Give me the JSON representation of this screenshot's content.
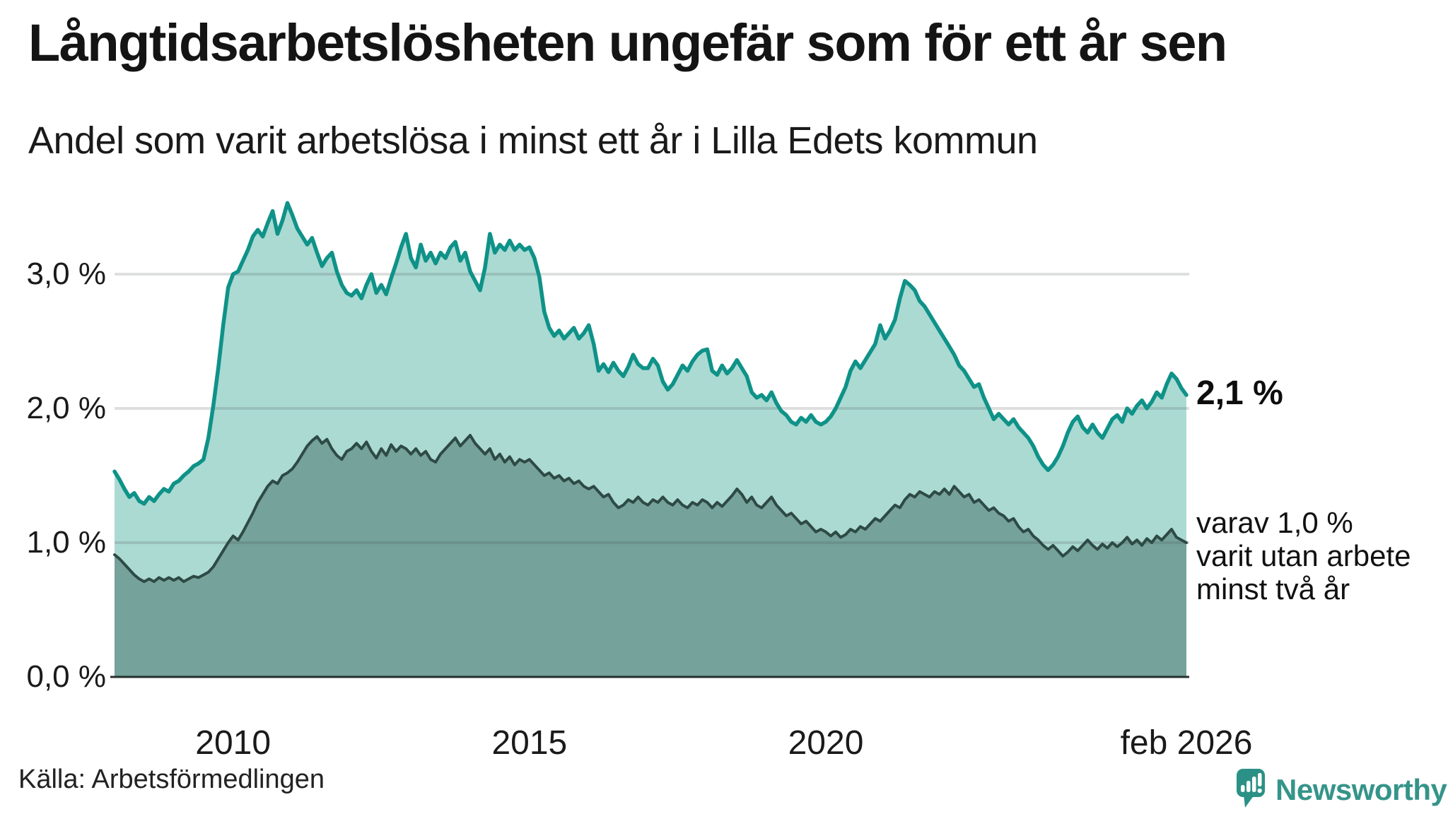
{
  "header": {
    "title": "Långtidsarbetslösheten ungefär som för ett år sen",
    "subtitle": "Andel som varit arbetslösa i minst ett år i Lilla Edets kommun"
  },
  "chart_data": {
    "type": "area",
    "title": "Långtidsarbetslösheten ungefär som för ett år sen",
    "subtitle": "Andel som varit arbetslösa i minst ett år i Lilla Edets kommun",
    "region": "Lilla Edets kommun",
    "frequency": "monthly",
    "x_start": "2008-01",
    "x_end": "2026-02",
    "ylim": [
      0,
      3.6
    ],
    "grid": true,
    "y_ticks": [
      {
        "label": "0,0 %",
        "v": 0
      },
      {
        "label": "1,0 %",
        "v": 1
      },
      {
        "label": "2,0 %",
        "v": 2
      },
      {
        "label": "3,0 %",
        "v": 3
      }
    ],
    "x_ticks": [
      {
        "label": "2010",
        "t": 2010
      },
      {
        "label": "2015",
        "t": 2015
      },
      {
        "label": "2020",
        "t": 2020
      },
      {
        "label": "feb 2026",
        "t": 2026.0833
      }
    ],
    "colors": {
      "accent_line": "#0f9288",
      "accent_fill": "#abdad3",
      "dark_line": "#2e4a44",
      "dark_fill": "#75a29b",
      "gridline": "rgba(70,80,78,0.18)",
      "axis": "#25302d",
      "text": "#1a1a1a",
      "brand": "#35948a"
    },
    "series": [
      {
        "name": "Andel arbetslösa minst ett år",
        "end_value_label": "2,1 %",
        "values": [
          1.53,
          1.47,
          1.4,
          1.34,
          1.37,
          1.31,
          1.29,
          1.34,
          1.31,
          1.36,
          1.4,
          1.38,
          1.44,
          1.46,
          1.5,
          1.53,
          1.57,
          1.59,
          1.62,
          1.78,
          2.02,
          2.3,
          2.62,
          2.9,
          3.0,
          3.02,
          3.1,
          3.18,
          3.28,
          3.33,
          3.28,
          3.38,
          3.47,
          3.3,
          3.4,
          3.53,
          3.44,
          3.34,
          3.28,
          3.22,
          3.27,
          3.16,
          3.06,
          3.12,
          3.16,
          3.02,
          2.92,
          2.86,
          2.84,
          2.88,
          2.82,
          2.92,
          3.0,
          2.86,
          2.92,
          2.85,
          2.97,
          3.08,
          3.2,
          3.3,
          3.12,
          3.05,
          3.22,
          3.1,
          3.16,
          3.08,
          3.16,
          3.12,
          3.2,
          3.24,
          3.1,
          3.16,
          3.02,
          2.95,
          2.88,
          3.05,
          3.3,
          3.16,
          3.22,
          3.18,
          3.25,
          3.18,
          3.22,
          3.18,
          3.2,
          3.12,
          2.98,
          2.72,
          2.6,
          2.54,
          2.58,
          2.52,
          2.56,
          2.6,
          2.52,
          2.56,
          2.62,
          2.48,
          2.28,
          2.33,
          2.27,
          2.34,
          2.28,
          2.24,
          2.31,
          2.4,
          2.33,
          2.3,
          2.3,
          2.37,
          2.32,
          2.2,
          2.14,
          2.18,
          2.25,
          2.32,
          2.28,
          2.35,
          2.4,
          2.43,
          2.44,
          2.28,
          2.25,
          2.32,
          2.26,
          2.3,
          2.36,
          2.3,
          2.24,
          2.12,
          2.08,
          2.1,
          2.06,
          2.12,
          2.04,
          1.98,
          1.95,
          1.9,
          1.88,
          1.93,
          1.9,
          1.95,
          1.9,
          1.88,
          1.9,
          1.94,
          2.0,
          2.08,
          2.16,
          2.28,
          2.35,
          2.3,
          2.36,
          2.42,
          2.48,
          2.62,
          2.52,
          2.58,
          2.66,
          2.82,
          2.95,
          2.92,
          2.88,
          2.8,
          2.76,
          2.7,
          2.64,
          2.58,
          2.52,
          2.46,
          2.4,
          2.32,
          2.28,
          2.22,
          2.16,
          2.18,
          2.08,
          2.0,
          1.92,
          1.96,
          1.92,
          1.88,
          1.92,
          1.86,
          1.82,
          1.78,
          1.72,
          1.64,
          1.58,
          1.54,
          1.58,
          1.64,
          1.72,
          1.82,
          1.9,
          1.94,
          1.86,
          1.82,
          1.88,
          1.82,
          1.78,
          1.85,
          1.92,
          1.95,
          1.9,
          2.0,
          1.96,
          2.02,
          2.06,
          2.0,
          2.05,
          2.12,
          2.08,
          2.18,
          2.26,
          2.22,
          2.15,
          2.1
        ]
      },
      {
        "name": "varav arbetslösa minst två år",
        "end_value_label": "1,0 %",
        "values": [
          0.91,
          0.88,
          0.84,
          0.8,
          0.76,
          0.73,
          0.71,
          0.73,
          0.71,
          0.74,
          0.72,
          0.74,
          0.72,
          0.74,
          0.71,
          0.73,
          0.75,
          0.74,
          0.76,
          0.78,
          0.82,
          0.88,
          0.94,
          1.0,
          1.05,
          1.02,
          1.08,
          1.15,
          1.22,
          1.3,
          1.36,
          1.42,
          1.46,
          1.44,
          1.5,
          1.52,
          1.55,
          1.6,
          1.66,
          1.72,
          1.76,
          1.79,
          1.74,
          1.77,
          1.7,
          1.65,
          1.62,
          1.68,
          1.7,
          1.74,
          1.7,
          1.75,
          1.68,
          1.63,
          1.7,
          1.65,
          1.73,
          1.68,
          1.72,
          1.7,
          1.66,
          1.7,
          1.65,
          1.68,
          1.62,
          1.6,
          1.66,
          1.7,
          1.74,
          1.78,
          1.72,
          1.76,
          1.8,
          1.74,
          1.7,
          1.66,
          1.7,
          1.62,
          1.66,
          1.6,
          1.64,
          1.58,
          1.62,
          1.6,
          1.62,
          1.58,
          1.54,
          1.5,
          1.52,
          1.48,
          1.5,
          1.46,
          1.48,
          1.44,
          1.46,
          1.42,
          1.4,
          1.42,
          1.38,
          1.34,
          1.36,
          1.3,
          1.26,
          1.28,
          1.32,
          1.3,
          1.34,
          1.3,
          1.28,
          1.32,
          1.3,
          1.34,
          1.3,
          1.28,
          1.32,
          1.28,
          1.26,
          1.3,
          1.28,
          1.32,
          1.3,
          1.26,
          1.3,
          1.27,
          1.31,
          1.35,
          1.4,
          1.36,
          1.3,
          1.34,
          1.28,
          1.26,
          1.3,
          1.34,
          1.28,
          1.24,
          1.2,
          1.22,
          1.18,
          1.14,
          1.16,
          1.12,
          1.08,
          1.1,
          1.08,
          1.05,
          1.08,
          1.04,
          1.06,
          1.1,
          1.08,
          1.12,
          1.1,
          1.14,
          1.18,
          1.16,
          1.2,
          1.24,
          1.28,
          1.26,
          1.32,
          1.36,
          1.34,
          1.38,
          1.36,
          1.34,
          1.38,
          1.36,
          1.4,
          1.36,
          1.42,
          1.38,
          1.34,
          1.36,
          1.3,
          1.32,
          1.28,
          1.24,
          1.26,
          1.22,
          1.2,
          1.16,
          1.18,
          1.12,
          1.08,
          1.1,
          1.05,
          1.02,
          0.98,
          0.95,
          0.98,
          0.94,
          0.9,
          0.93,
          0.97,
          0.94,
          0.98,
          1.02,
          0.98,
          0.95,
          0.99,
          0.96,
          1.0,
          0.97,
          1.0,
          1.04,
          0.99,
          1.02,
          0.98,
          1.03,
          1.0,
          1.05,
          1.02,
          1.06,
          1.1,
          1.04,
          1.02,
          1.0
        ]
      }
    ],
    "end_labels": {
      "total": "2,1 %",
      "subset_lines": [
        "varav 1,0 %",
        "varit utan arbete",
        "minst två år"
      ]
    },
    "legend_position": "right-annotations"
  },
  "footer": {
    "source": "Källa: Arbetsförmedlingen",
    "logo_text": "Newsworthy"
  }
}
